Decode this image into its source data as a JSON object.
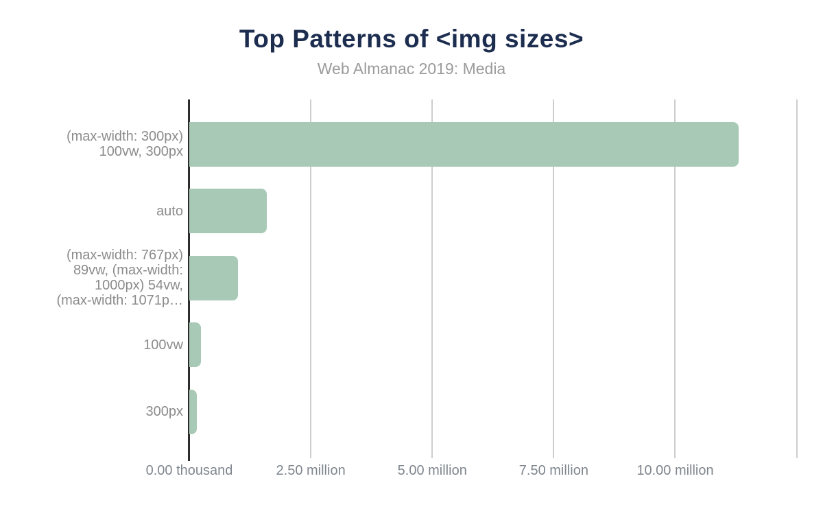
{
  "header": {
    "title": "Top Patterns of <img sizes>",
    "subtitle": "Web Almanac 2019: Media"
  },
  "chart_data": {
    "type": "bar",
    "orientation": "horizontal",
    "title": "Top Patterns of <img sizes>",
    "subtitle": "Web Almanac 2019: Media",
    "categories": [
      "(max-width: 300px) 100vw, 300px",
      "auto",
      "(max-width: 767px) 89vw, (max-width: 1000px) 54vw, (max-width: 1071p…",
      "100vw",
      "300px"
    ],
    "category_lines": [
      [
        "(max-width: 300px)",
        "100vw, 300px"
      ],
      [
        "auto"
      ],
      [
        "(max-width: 767px)",
        "89vw, (max-width:",
        "1000px) 54vw,",
        "(max-width: 1071p…"
      ],
      [
        "100vw"
      ],
      [
        "300px"
      ]
    ],
    "values": [
      11300000,
      1600000,
      1000000,
      240000,
      150000
    ],
    "xlabel": "",
    "ylabel": "",
    "xlim": [
      0,
      12830000
    ],
    "x_ticks": [
      {
        "value": 0,
        "label": "0.00 thousand"
      },
      {
        "value": 2500000,
        "label": "2.50 million"
      },
      {
        "value": 5000000,
        "label": "5.00 million"
      },
      {
        "value": 7500000,
        "label": "7.50 million"
      },
      {
        "value": 10000000,
        "label": "10.00 million"
      }
    ],
    "gridline_values": [
      2500000,
      5000000,
      7500000,
      10000000,
      12500000
    ],
    "grid": "vertical-only",
    "legend": "none",
    "colors": {
      "bar": "#a8c9b6",
      "title": "#1c2d4f",
      "subtitle": "#9b9b9b",
      "axis_line": "#2d2d2d",
      "gridline": "#cdcdcd",
      "x_tick_label": "#7f868e",
      "category_label": "#8b8b8b",
      "background": "#ffffff"
    }
  }
}
